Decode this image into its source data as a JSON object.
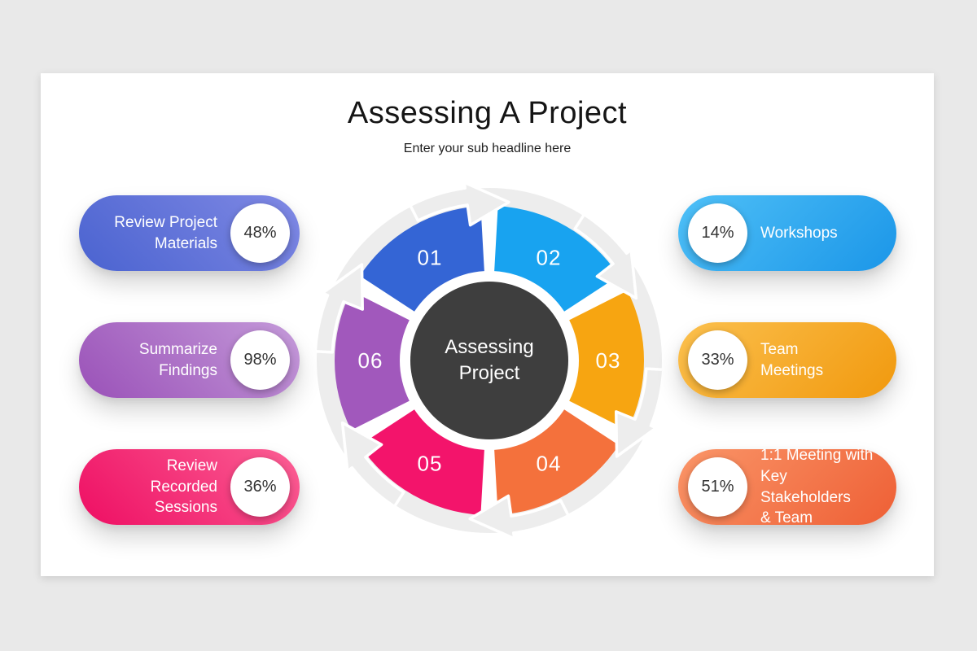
{
  "slide": {
    "title": "Assessing A Project",
    "subtitle": "Enter your sub headline here"
  },
  "wheel": {
    "center_label": "Assessing\nProject",
    "center_color": "#3e3e3e",
    "ring_color": "#ededed",
    "arrow_color": "#ededed",
    "number_color": "#ffffff",
    "segments": [
      {
        "number": "01",
        "color": "#3465d5"
      },
      {
        "number": "02",
        "color": "#18a3f0"
      },
      {
        "number": "03",
        "color": "#f7a511"
      },
      {
        "number": "04",
        "color": "#f4713c"
      },
      {
        "number": "05",
        "color": "#f3146b"
      },
      {
        "number": "06",
        "color": "#a158bc"
      }
    ]
  },
  "left_items": [
    {
      "label": "Review Project\nMaterials",
      "value": "48%",
      "gradient": [
        "#8089e4",
        "#4a63d0"
      ]
    },
    {
      "label": "Summarize\nFindings",
      "value": "98%",
      "gradient": [
        "#c49ad9",
        "#9a51b8"
      ]
    },
    {
      "label": "Review Recorded\nSessions",
      "value": "36%",
      "gradient": [
        "#fb5f94",
        "#ee0e63"
      ]
    }
  ],
  "right_items": [
    {
      "label": "Workshops",
      "value": "14%",
      "gradient": [
        "#4fc0f7",
        "#1b96e8"
      ]
    },
    {
      "label": "Team\nMeetings",
      "value": "33%",
      "gradient": [
        "#fbc04e",
        "#f1990e"
      ]
    },
    {
      "label": "1:1 Meeting with\nKey Stakeholders\n& Team",
      "value": "51%",
      "gradient": [
        "#fa9568",
        "#ee5f35"
      ]
    }
  ]
}
